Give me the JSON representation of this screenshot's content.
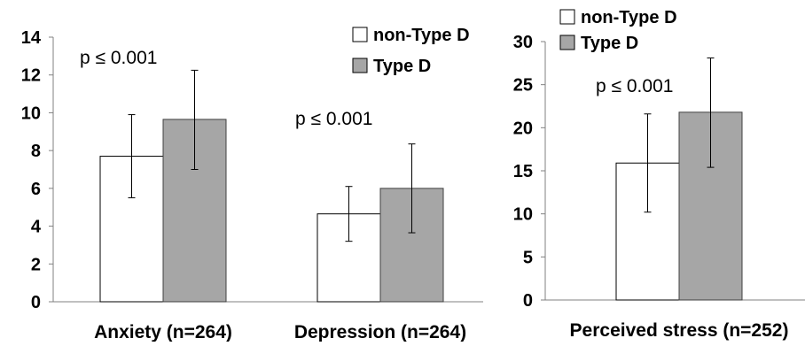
{
  "chart_data": [
    {
      "type": "bar",
      "title": "",
      "xlabel": "",
      "ylabel": "",
      "ylim": [
        0,
        14
      ],
      "yticks": [
        0,
        2,
        4,
        6,
        8,
        10,
        12,
        14
      ],
      "grid": false,
      "legend_position": "top-right",
      "categories": [
        "Anxiety (n=264)",
        "Depression (n=264)"
      ],
      "series": [
        {
          "name": "non-Type D",
          "color": "#ffffff",
          "values": [
            7.7,
            4.65
          ],
          "error_low": [
            5.5,
            3.2
          ],
          "error_high": [
            9.9,
            6.1
          ]
        },
        {
          "name": "Type D",
          "color": "#a6a6a6",
          "values": [
            9.65,
            6.0
          ],
          "error_low": [
            7.0,
            3.65
          ],
          "error_high": [
            12.25,
            8.35
          ]
        }
      ],
      "annotations": [
        "p ≤ 0.001",
        "p ≤ 0.001"
      ]
    },
    {
      "type": "bar",
      "title": "",
      "xlabel": "",
      "ylabel": "",
      "ylim": [
        0,
        30
      ],
      "yticks": [
        0,
        5,
        10,
        15,
        20,
        25,
        30
      ],
      "grid": false,
      "legend_position": "top-left",
      "categories": [
        "Perceived stress (n=252)"
      ],
      "series": [
        {
          "name": "non-Type D",
          "color": "#ffffff",
          "values": [
            15.9
          ],
          "error_low": [
            10.2
          ],
          "error_high": [
            21.6
          ]
        },
        {
          "name": "Type D",
          "color": "#a6a6a6",
          "values": [
            21.8
          ],
          "error_low": [
            15.4
          ],
          "error_high": [
            28.1
          ]
        }
      ],
      "annotations": [
        "p ≤  0.001"
      ]
    }
  ]
}
